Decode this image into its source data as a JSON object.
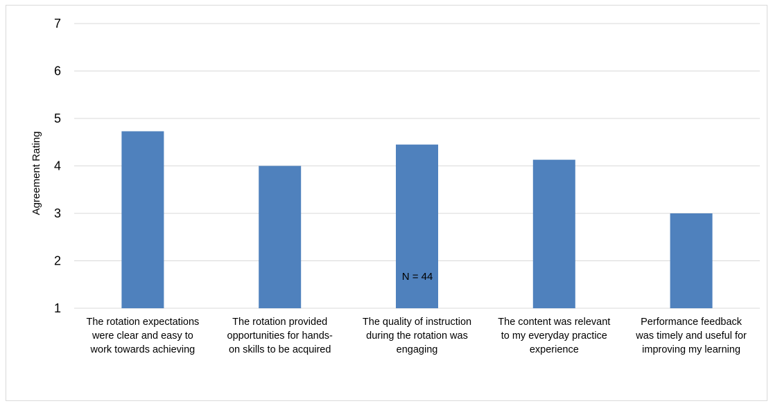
{
  "chart_data": {
    "type": "bar",
    "title": "",
    "xlabel": "N = 44",
    "ylabel": "Agreement Rating",
    "ylim": [
      1,
      7
    ],
    "yticks": [
      1,
      2,
      3,
      4,
      5,
      6,
      7
    ],
    "grid": true,
    "legend": "none",
    "bar_color": "#4f81bd",
    "grid_color": "#d9d9d9",
    "categories": [
      [
        "The rotation expectations",
        "were clear and easy to",
        "work towards achieving"
      ],
      [
        "The rotation provided",
        "opportunities for hands-",
        "on skills to be acquired"
      ],
      [
        "The quality of instruction",
        "during the rotation was",
        "engaging"
      ],
      [
        "The content was relevant",
        "to my everyday practice",
        "experience"
      ],
      [
        "Performance feedback",
        "was timely and useful for",
        "improving my learning"
      ]
    ],
    "values": [
      4.73,
      4.0,
      4.45,
      4.13,
      3.0
    ]
  }
}
